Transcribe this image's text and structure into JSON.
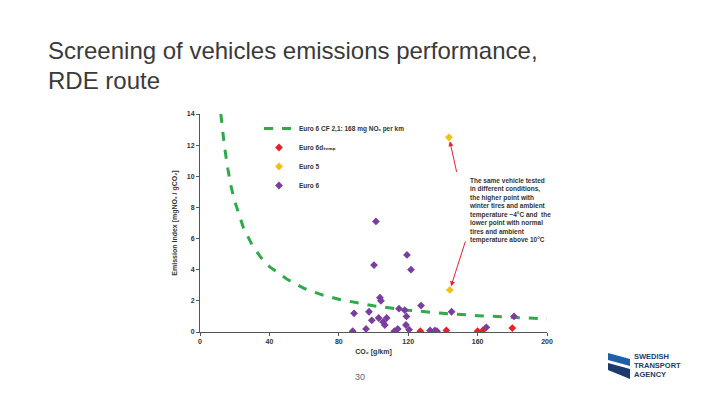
{
  "slide_title": [
    "Screening of vehicles emissions performance,",
    "RDE route"
  ],
  "page_number": "30",
  "logo": [
    "SWEDISH",
    "TRANSPORT",
    "AGENCY"
  ],
  "chart_data": {
    "type": "scatter",
    "x_label": "CO₂ [g/km]",
    "y_label": "Emission Index [mgNOₓ / gCO₂]",
    "xlim": [
      0,
      200
    ],
    "xticks": [
      0,
      40,
      80,
      120,
      160,
      200
    ],
    "ylim": [
      0,
      14
    ],
    "yticks": [
      0,
      2,
      4,
      6,
      8,
      10,
      12,
      14
    ],
    "grid": false,
    "legend": "upper left",
    "annotations": [
      {
        "text": [
          "The same vehicle tested",
          "in different conditions,",
          "the higher point with",
          "winter tires and ambient",
          "temperature ~4°C and  the",
          "lower point with normal",
          "tires and ambient",
          "temperature above 10°C"
        ]
      }
    ],
    "series": [
      {
        "name": "Euro 6 CF 2,1: 168 mg NOₓ per km",
        "type": "line",
        "color": "#2eaa4a",
        "line_style": "dash",
        "x": [
          12,
          14,
          16,
          18,
          20,
          25,
          30,
          35,
          40,
          50,
          60,
          70,
          80,
          90,
          100,
          120,
          140,
          160,
          180,
          200
        ],
        "values": [
          14,
          12,
          10.5,
          9.3,
          8.4,
          6.7,
          5.6,
          4.8,
          4.2,
          3.4,
          2.8,
          2.4,
          2.1,
          1.87,
          1.68,
          1.4,
          1.2,
          1.05,
          0.93,
          0.84
        ]
      },
      {
        "name": "Euro 6dₜₑₘₚ",
        "type": "scatter",
        "color": "#e8202a",
        "marker": "diamond",
        "x": [
          127,
          142,
          160,
          163,
          180
        ],
        "values": [
          0.05,
          0.1,
          0.05,
          0.1,
          0.25
        ]
      },
      {
        "name": "Euro 5",
        "type": "scatter",
        "color": "#f2c012",
        "marker": "diamond",
        "x": [
          143.5,
          144
        ],
        "values": [
          12.5,
          2.7
        ]
      },
      {
        "name": "Euro 6",
        "type": "scatter",
        "color": "#7a3ea0",
        "marker": "diamond",
        "x": [
          101.4,
          100.3,
          103.7,
          104.3,
          119.3,
          121.6,
          88.8,
          97.4,
          99,
          105.5,
          107.6,
          106.5,
          114.7,
          118,
          119,
          118.7,
          120.5,
          127.4,
          114,
          95.7,
          88,
          112,
          132.6,
          135.4,
          136.6,
          145,
          165,
          181,
          103
        ],
        "values": [
          7.1,
          4.3,
          2.2,
          2.0,
          4.95,
          4.0,
          1.2,
          1.3,
          0.75,
          0.65,
          0.9,
          0.45,
          1.5,
          1.4,
          1.0,
          0.45,
          0.15,
          1.7,
          0.2,
          0.2,
          0.05,
          0.05,
          0.1,
          0.1,
          0.05,
          1.3,
          0.3,
          1.0,
          0.9
        ]
      }
    ]
  }
}
